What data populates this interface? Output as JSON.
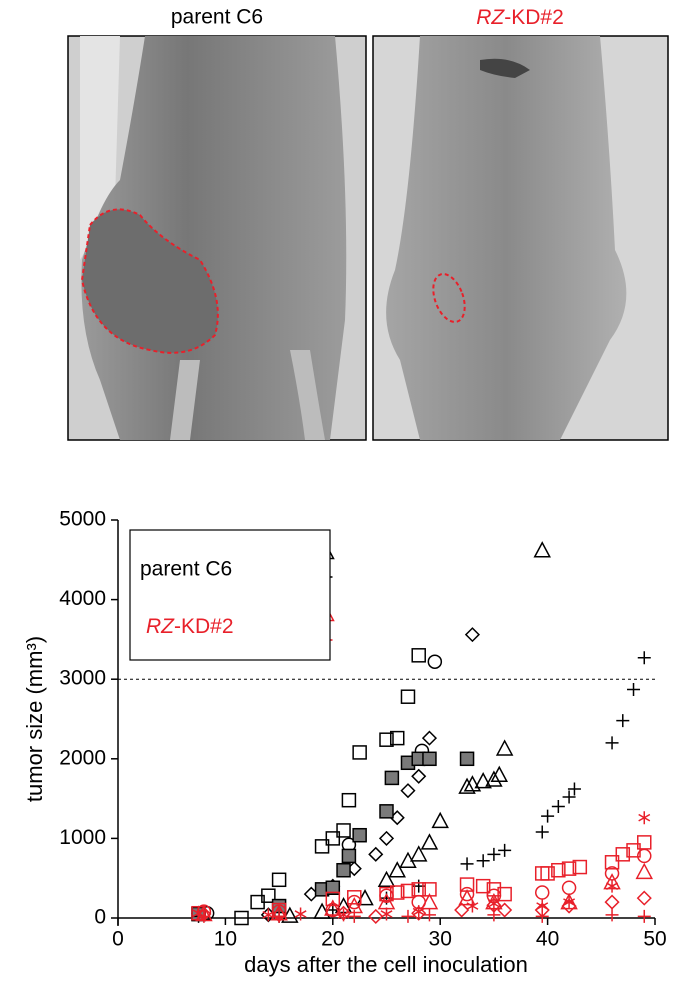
{
  "photos": [
    {
      "label": "parent C6",
      "color": "#000000"
    },
    {
      "label": "RZ-KD#2",
      "color": "#e8202a"
    }
  ],
  "chart_data": {
    "type": "scatter",
    "xlabel": "days after the cell inoculation",
    "ylabel": "tumor size (mm³)",
    "xlim": [
      0,
      50
    ],
    "xticks": [
      0,
      10,
      20,
      30,
      40,
      50
    ],
    "ylim": [
      0,
      5000
    ],
    "yticks": [
      0,
      1000,
      2000,
      3000,
      4000,
      5000
    ],
    "hline": 3000,
    "legend": [
      {
        "name": "parent C6",
        "color": "#000000"
      },
      {
        "name": "RZ-KD#2",
        "color": "#e8202a"
      }
    ],
    "series": [
      {
        "group": 0,
        "marker": "circle",
        "color": "#000000",
        "x": [
          8.3,
          21.5,
          28.3,
          29.5
        ],
        "values": [
          60,
          920,
          2100,
          3220
        ]
      },
      {
        "group": 0,
        "marker": "square",
        "color": "#000000",
        "x": [
          7.5,
          11.5,
          13,
          14,
          15,
          19,
          20,
          21,
          21.5,
          22.5,
          25,
          26,
          27,
          28
        ],
        "values": [
          50,
          0,
          200,
          280,
          480,
          900,
          1000,
          1100,
          1480,
          2080,
          2240,
          2260,
          2780,
          3300
        ]
      },
      {
        "group": 0,
        "marker": "triangle",
        "color": "#000000",
        "x": [
          16,
          19,
          21,
          23,
          25,
          26,
          27,
          28,
          29,
          30,
          32.5,
          33,
          34,
          35,
          35.5,
          36,
          39.5
        ],
        "values": [
          30,
          80,
          150,
          250,
          480,
          600,
          720,
          800,
          950,
          1220,
          1650,
          1680,
          1720,
          1740,
          1800,
          2130,
          4620
        ]
      },
      {
        "group": 0,
        "marker": "diamond",
        "color": "#000000",
        "x": [
          7.5,
          14,
          18,
          20,
          22,
          24,
          25,
          26,
          27,
          28,
          28.5,
          29,
          33
        ],
        "values": [
          60,
          40,
          300,
          400,
          620,
          800,
          1000,
          1260,
          1600,
          1780,
          2000,
          2260,
          3560
        ]
      },
      {
        "group": 0,
        "marker": "filled-square",
        "color": "#000000",
        "x": [
          7.5,
          15,
          19,
          20,
          21,
          21.5,
          22.5,
          25,
          25.5,
          27,
          28,
          29,
          32.5
        ],
        "values": [
          50,
          150,
          360,
          380,
          600,
          780,
          1040,
          1340,
          1760,
          1950,
          2000,
          2000,
          2000
        ]
      },
      {
        "group": 0,
        "marker": "plus",
        "color": "#000000",
        "x": [
          7.5,
          15,
          20,
          25,
          28,
          32.5,
          34,
          35,
          36,
          39.5,
          40,
          41,
          42,
          42.5,
          46,
          47,
          48,
          49
        ],
        "values": [
          20,
          20,
          100,
          250,
          400,
          680,
          720,
          800,
          850,
          1080,
          1280,
          1400,
          1520,
          1620,
          2200,
          2480,
          2870,
          3270
        ]
      },
      {
        "group": 1,
        "marker": "circle",
        "color": "#e8202a",
        "x": [
          8,
          15,
          20,
          22,
          25,
          28,
          32.5,
          35,
          39.5,
          42,
          46,
          49
        ],
        "values": [
          80,
          80,
          100,
          200,
          280,
          200,
          300,
          280,
          320,
          380,
          560,
          780
        ]
      },
      {
        "group": 1,
        "marker": "square",
        "color": "#e8202a",
        "x": [
          7.5,
          15,
          20,
          22,
          25,
          26,
          27,
          28,
          29,
          32.5,
          34,
          35,
          36,
          39.5,
          40,
          41,
          42,
          43,
          46,
          47,
          48,
          49
        ],
        "values": [
          60,
          100,
          240,
          260,
          300,
          320,
          340,
          360,
          360,
          420,
          400,
          360,
          300,
          560,
          560,
          600,
          620,
          640,
          700,
          800,
          850,
          950
        ]
      },
      {
        "group": 1,
        "marker": "triangle",
        "color": "#e8202a",
        "x": [
          8,
          15,
          20,
          22,
          25,
          29,
          32.5,
          35,
          42,
          46,
          49
        ],
        "values": [
          50,
          60,
          120,
          150,
          200,
          200,
          250,
          200,
          200,
          450,
          580
        ]
      },
      {
        "group": 1,
        "marker": "asterisk",
        "color": "#e8202a",
        "x": [
          7.5,
          14,
          17,
          21,
          25,
          28,
          33,
          35,
          39.5,
          42,
          46,
          49
        ],
        "values": [
          60,
          40,
          50,
          40,
          50,
          80,
          150,
          180,
          150,
          200,
          400,
          1260
        ]
      },
      {
        "group": 1,
        "marker": "diamond",
        "color": "#e8202a",
        "x": [
          8,
          15,
          21,
          24,
          28,
          32,
          35,
          36,
          39.5,
          42,
          46,
          49
        ],
        "values": [
          50,
          40,
          60,
          20,
          60,
          100,
          160,
          100,
          100,
          150,
          200,
          250
        ]
      },
      {
        "group": 1,
        "marker": "plus",
        "color": "#e8202a",
        "x": [
          8,
          15,
          22,
          27,
          29,
          35,
          39.5,
          46,
          49
        ],
        "values": [
          20,
          20,
          20,
          20,
          40,
          40,
          20,
          40,
          20
        ]
      }
    ]
  }
}
